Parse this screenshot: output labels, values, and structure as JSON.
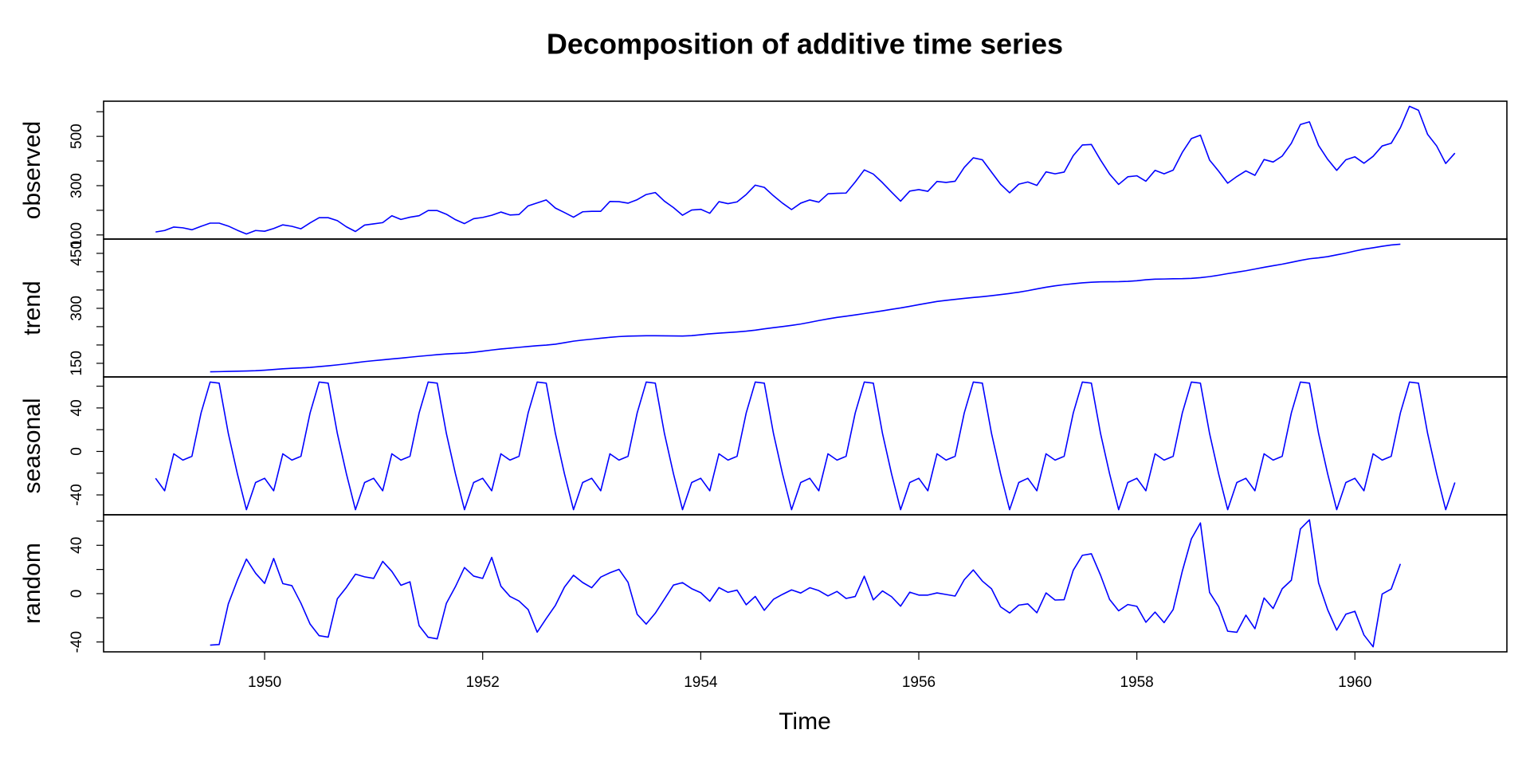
{
  "chart_data": {
    "type": "line",
    "title": "Decomposition of additive time series",
    "xlabel": "Time",
    "color": "#0000ff",
    "xlim": [
      1948.523,
      1961.394
    ],
    "xticks": [
      1950,
      1952,
      1954,
      1956,
      1958,
      1960
    ],
    "x": [
      1949,
      1949.083,
      1949.167,
      1949.25,
      1949.333,
      1949.417,
      1949.5,
      1949.583,
      1949.667,
      1949.75,
      1949.833,
      1949.917,
      1950,
      1950.083,
      1950.167,
      1950.25,
      1950.333,
      1950.417,
      1950.5,
      1950.583,
      1950.667,
      1950.75,
      1950.833,
      1950.917,
      1951,
      1951.083,
      1951.167,
      1951.25,
      1951.333,
      1951.417,
      1951.5,
      1951.583,
      1951.667,
      1951.75,
      1951.833,
      1951.917,
      1952,
      1952.083,
      1952.167,
      1952.25,
      1952.333,
      1952.417,
      1952.5,
      1952.583,
      1952.667,
      1952.75,
      1952.833,
      1952.917,
      1953,
      1953.083,
      1953.167,
      1953.25,
      1953.333,
      1953.417,
      1953.5,
      1953.583,
      1953.667,
      1953.75,
      1953.833,
      1953.917,
      1954,
      1954.083,
      1954.167,
      1954.25,
      1954.333,
      1954.417,
      1954.5,
      1954.583,
      1954.667,
      1954.75,
      1954.833,
      1954.917,
      1955,
      1955.083,
      1955.167,
      1955.25,
      1955.333,
      1955.417,
      1955.5,
      1955.583,
      1955.667,
      1955.75,
      1955.833,
      1955.917,
      1956,
      1956.083,
      1956.167,
      1956.25,
      1956.333,
      1956.417,
      1956.5,
      1956.583,
      1956.667,
      1956.75,
      1956.833,
      1956.917,
      1957,
      1957.083,
      1957.167,
      1957.25,
      1957.333,
      1957.417,
      1957.5,
      1957.583,
      1957.667,
      1957.75,
      1957.833,
      1957.917,
      1958,
      1958.083,
      1958.167,
      1958.25,
      1958.333,
      1958.417,
      1958.5,
      1958.583,
      1958.667,
      1958.75,
      1958.833,
      1958.917,
      1959,
      1959.083,
      1959.167,
      1959.25,
      1959.333,
      1959.417,
      1959.5,
      1959.583,
      1959.667,
      1959.75,
      1959.833,
      1959.917,
      1960,
      1960.083,
      1960.167,
      1960.25,
      1960.333,
      1960.417,
      1960.5,
      1960.583,
      1960.667,
      1960.75,
      1960.833,
      1960.917
    ],
    "series": [
      {
        "name": "observed",
        "ylim": [
          83.28,
          642.72
        ],
        "yticks": [
          100,
          300,
          500
        ],
        "yticks_minor": [
          200,
          400,
          600
        ],
        "values": [
          112,
          118,
          132,
          129,
          121,
          135,
          148,
          148,
          136,
          119,
          104,
          118,
          115,
          126,
          141,
          135,
          125,
          149,
          170,
          170,
          158,
          133,
          114,
          140,
          145,
          150,
          178,
          163,
          172,
          178,
          199,
          199,
          184,
          162,
          146,
          166,
          171,
          180,
          193,
          181,
          183,
          218,
          230,
          242,
          209,
          191,
          172,
          194,
          196,
          196,
          236,
          235,
          229,
          243,
          264,
          272,
          237,
          211,
          180,
          201,
          204,
          188,
          235,
          227,
          234,
          264,
          302,
          293,
          259,
          229,
          203,
          229,
          242,
          233,
          267,
          269,
          270,
          315,
          364,
          347,
          312,
          274,
          237,
          278,
          284,
          277,
          317,
          313,
          318,
          374,
          413,
          405,
          355,
          306,
          271,
          306,
          315,
          301,
          356,
          348,
          355,
          422,
          465,
          467,
          404,
          347,
          305,
          336,
          340,
          318,
          362,
          348,
          363,
          435,
          491,
          505,
          404,
          359,
          310,
          337,
          360,
          342,
          406,
          396,
          420,
          472,
          548,
          559,
          463,
          407,
          362,
          405,
          417,
          391,
          419,
          461,
          472,
          535,
          622,
          606,
          508,
          461,
          390,
          432
        ]
      },
      {
        "name": "trend",
        "ylim": [
          112.86,
          488.97
        ],
        "yticks": [
          150,
          300,
          450
        ],
        "yticks_minor": [
          200,
          250,
          350,
          400
        ],
        "values": [
          null,
          null,
          null,
          null,
          null,
          null,
          126.79,
          127.25,
          127.96,
          128.58,
          129.0,
          129.75,
          131.25,
          133.08,
          134.92,
          136.42,
          137.42,
          138.75,
          140.92,
          143.17,
          145.71,
          148.42,
          151.54,
          154.71,
          157.13,
          159.54,
          161.83,
          164.13,
          166.67,
          169.08,
          171.25,
          173.58,
          175.46,
          176.83,
          178.04,
          180.17,
          183.13,
          186.21,
          189.04,
          191.29,
          193.58,
          195.83,
          198.04,
          199.75,
          202.21,
          206.25,
          210.42,
          213.38,
          215.83,
          218.5,
          220.92,
          222.92,
          224.08,
          224.71,
          225.33,
          225.33,
          224.96,
          224.58,
          224.46,
          225.54,
          228.0,
          230.46,
          232.25,
          233.92,
          235.63,
          237.75,
          240.5,
          243.96,
          247.17,
          250.25,
          253.5,
          257.13,
          261.83,
          266.67,
          271.13,
          275.21,
          278.5,
          281.96,
          285.75,
          289.33,
          293.25,
          297.17,
          301.0,
          305.46,
          309.96,
          314.42,
          318.63,
          321.75,
          324.5,
          327.08,
          329.54,
          331.83,
          334.46,
          337.54,
          340.54,
          344.08,
          348.25,
          353.0,
          357.63,
          361.38,
          364.5,
          367.17,
          369.46,
          371.21,
          372.17,
          372.42,
          372.75,
          373.63,
          375.25,
          377.92,
          379.5,
          380.0,
          380.71,
          380.96,
          381.83,
          383.67,
          386.5,
          390.33,
          394.71,
          398.63,
          402.54,
          407.17,
          411.88,
          416.33,
          420.5,
          425.5,
          430.71,
          435.13,
          437.71,
          440.96,
          445.83,
          450.63,
          456.33,
          461.38,
          465.21,
          469.33,
          472.75,
          475.04,
          null,
          null,
          null,
          null,
          null,
          null
        ]
      },
      {
        "name": "seasonal",
        "ylim": [
          -58.29,
          68.53
        ],
        "yticks": [
          -40,
          0,
          40
        ],
        "yticks_minor": [
          -20,
          20,
          60
        ],
        "values": [
          -24.7,
          -36.2,
          -2.2,
          -8.0,
          -4.5,
          35.4,
          63.8,
          62.8,
          16.5,
          -20.6,
          -53.6,
          -28.6,
          -24.7,
          -36.2,
          -2.2,
          -8.0,
          -4.5,
          35.4,
          63.8,
          62.8,
          16.5,
          -20.6,
          -53.6,
          -28.6,
          -24.7,
          -36.2,
          -2.2,
          -8.0,
          -4.5,
          35.4,
          63.8,
          62.8,
          16.5,
          -20.6,
          -53.6,
          -28.6,
          -24.7,
          -36.2,
          -2.2,
          -8.0,
          -4.5,
          35.4,
          63.8,
          62.8,
          16.5,
          -20.6,
          -53.6,
          -28.6,
          -24.7,
          -36.2,
          -2.2,
          -8.0,
          -4.5,
          35.4,
          63.8,
          62.8,
          16.5,
          -20.6,
          -53.6,
          -28.6,
          -24.7,
          -36.2,
          -2.2,
          -8.0,
          -4.5,
          35.4,
          63.8,
          62.8,
          16.5,
          -20.6,
          -53.6,
          -28.6,
          -24.7,
          -36.2,
          -2.2,
          -8.0,
          -4.5,
          35.4,
          63.8,
          62.8,
          16.5,
          -20.6,
          -53.6,
          -28.6,
          -24.7,
          -36.2,
          -2.2,
          -8.0,
          -4.5,
          35.4,
          63.8,
          62.8,
          16.5,
          -20.6,
          -53.6,
          -28.6,
          -24.7,
          -36.2,
          -2.2,
          -8.0,
          -4.5,
          35.4,
          63.8,
          62.8,
          16.5,
          -20.6,
          -53.6,
          -28.6,
          -24.7,
          -36.2,
          -2.2,
          -8.0,
          -4.5,
          35.4,
          63.8,
          62.8,
          16.5,
          -20.6,
          -53.6,
          -28.6,
          -24.7,
          -36.2,
          -2.2,
          -8.0,
          -4.5,
          35.4,
          63.8,
          62.8,
          16.5,
          -20.6,
          -53.6,
          -28.6,
          -24.7,
          -36.2,
          -2.2,
          -8.0,
          -4.5,
          35.4,
          63.8,
          62.8,
          16.5,
          -20.6,
          -53.6,
          -28.6
        ]
      },
      {
        "name": "random",
        "ylim": [
          -48.17,
          65.25
        ],
        "yticks": [
          -40,
          0,
          40
        ],
        "yticks_minor": [
          -20,
          20,
          60
        ],
        "values": [
          null,
          null,
          null,
          null,
          null,
          null,
          -42.6,
          -42.1,
          -8.5,
          11.1,
          28.6,
          16.9,
          8.5,
          29.1,
          8.3,
          6.6,
          -7.9,
          -25.2,
          -34.8,
          -36.0,
          -4.2,
          5.2,
          16.1,
          13.9,
          12.6,
          26.7,
          18.4,
          6.9,
          9.8,
          -26.5,
          -36.1,
          -37.4,
          -8.0,
          5.8,
          21.6,
          14.5,
          12.6,
          30.0,
          6.2,
          -2.3,
          -6.1,
          -13.2,
          -31.9,
          -20.6,
          -9.7,
          5.4,
          15.2,
          9.2,
          4.9,
          13.7,
          17.3,
          20.1,
          9.4,
          -17.1,
          -25.2,
          -16.2,
          -4.5,
          7.1,
          9.1,
          4.1,
          0.8,
          -6.3,
          5.0,
          1.1,
          2.9,
          -9.2,
          -2.3,
          -13.8,
          -4.7,
          -0.6,
          3.1,
          0.5,
          4.9,
          2.5,
          -1.9,
          1.8,
          -4.0,
          -2.4,
          14.4,
          -5.2,
          2.2,
          -2.5,
          -10.4,
          1.2,
          -1.2,
          -1.2,
          0.6,
          -0.7,
          -2.0,
          11.5,
          19.6,
          10.4,
          4.0,
          -10.9,
          -16.0,
          -9.5,
          -8.5,
          -15.8,
          0.6,
          -5.3,
          -5.0,
          19.4,
          31.7,
          33.0,
          15.3,
          -4.8,
          -14.2,
          -9.0,
          -10.5,
          -23.7,
          -15.3,
          -24.0,
          -13.2,
          18.6,
          45.3,
          58.5,
          1.0,
          -10.7,
          -31.1,
          -32.0,
          -17.8,
          -29.0,
          -3.6,
          -12.3,
          4.0,
          11.1,
          53.5,
          61.1,
          8.8,
          -13.3,
          -30.2,
          -17.0,
          -14.6,
          -34.2,
          -44.0,
          -0.3,
          3.8,
          24.6,
          null,
          null,
          null,
          null,
          null,
          null
        ]
      }
    ]
  }
}
